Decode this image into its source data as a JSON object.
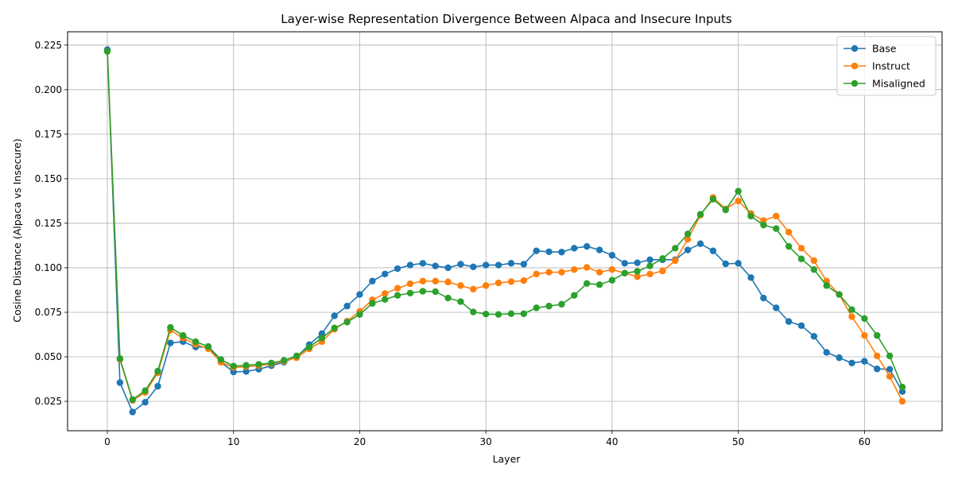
{
  "chart_data": {
    "type": "line",
    "title": "Layer-wise Representation Divergence Between Alpaca and Insecure Inputs",
    "xlabel": "Layer",
    "ylabel": "Cosine Distance (Alpaca vs Insecure)",
    "xlim": [
      -3.15,
      66.15
    ],
    "ylim": [
      0.0085,
      0.2325
    ],
    "xticks": [
      0,
      10,
      20,
      30,
      40,
      50,
      60
    ],
    "yticks": [
      0.025,
      0.05,
      0.075,
      0.1,
      0.125,
      0.15,
      0.175,
      0.2,
      0.225
    ],
    "ytick_labels": [
      "0.025",
      "0.050",
      "0.075",
      "0.100",
      "0.125",
      "0.150",
      "0.175",
      "0.200",
      "0.225"
    ],
    "grid": true,
    "legend_position": "top-right",
    "x": [
      0,
      1,
      2,
      3,
      4,
      5,
      6,
      7,
      8,
      9,
      10,
      11,
      12,
      13,
      14,
      15,
      16,
      17,
      18,
      19,
      20,
      21,
      22,
      23,
      24,
      25,
      26,
      27,
      28,
      29,
      30,
      31,
      32,
      33,
      34,
      35,
      36,
      37,
      38,
      39,
      40,
      41,
      42,
      43,
      44,
      45,
      46,
      47,
      48,
      49,
      50,
      51,
      52,
      53,
      54,
      55,
      56,
      57,
      58,
      59,
      60,
      61,
      62,
      63
    ],
    "series": [
      {
        "name": "Base",
        "color": "#1f77b4",
        "values": [
          0.2225,
          0.0355,
          0.019,
          0.0245,
          0.0335,
          0.0578,
          0.0585,
          0.0555,
          0.0555,
          0.047,
          0.0415,
          0.0418,
          0.043,
          0.045,
          0.047,
          0.05,
          0.0568,
          0.063,
          0.073,
          0.0785,
          0.085,
          0.0925,
          0.0965,
          0.0995,
          0.1015,
          0.1025,
          0.101,
          0.1,
          0.102,
          0.1005,
          0.1015,
          0.1015,
          0.1025,
          0.102,
          0.1095,
          0.109,
          0.1088,
          0.111,
          0.112,
          0.11,
          0.107,
          0.1025,
          0.1028,
          0.1045,
          0.1045,
          0.1045,
          0.11,
          0.1135,
          0.1095,
          0.1022,
          0.1025,
          0.0945,
          0.083,
          0.0775,
          0.0698,
          0.0675,
          0.0615,
          0.0525,
          0.0495,
          0.0465,
          0.0475,
          0.0432,
          0.043,
          0.0305
        ]
      },
      {
        "name": "Instruct",
        "color": "#ff7f0e",
        "values": [
          0.2215,
          0.0485,
          0.0255,
          0.03,
          0.041,
          0.065,
          0.0605,
          0.057,
          0.0545,
          0.047,
          0.044,
          0.0445,
          0.045,
          0.046,
          0.0475,
          0.0495,
          0.0545,
          0.0585,
          0.0655,
          0.07,
          0.0755,
          0.082,
          0.0855,
          0.0885,
          0.091,
          0.0925,
          0.0925,
          0.092,
          0.09,
          0.088,
          0.09,
          0.0915,
          0.0922,
          0.0928,
          0.0965,
          0.0975,
          0.0975,
          0.099,
          0.1002,
          0.0975,
          0.099,
          0.097,
          0.095,
          0.0965,
          0.0982,
          0.104,
          0.116,
          0.1295,
          0.1395,
          0.133,
          0.1375,
          0.1305,
          0.1265,
          0.129,
          0.12,
          0.111,
          0.104,
          0.0925,
          0.085,
          0.0725,
          0.062,
          0.0505,
          0.039,
          0.025
        ]
      },
      {
        "name": "Misaligned",
        "color": "#2ca02c",
        "values": [
          0.2215,
          0.049,
          0.026,
          0.031,
          0.042,
          0.0665,
          0.062,
          0.0585,
          0.0558,
          0.0485,
          0.0448,
          0.0452,
          0.0458,
          0.0465,
          0.048,
          0.0505,
          0.0555,
          0.0605,
          0.0662,
          0.0695,
          0.0738,
          0.08,
          0.0822,
          0.0845,
          0.0858,
          0.0868,
          0.0866,
          0.083,
          0.081,
          0.0752,
          0.074,
          0.0738,
          0.0742,
          0.0742,
          0.0775,
          0.0785,
          0.0795,
          0.0845,
          0.0912,
          0.0905,
          0.093,
          0.097,
          0.098,
          0.101,
          0.1052,
          0.111,
          0.119,
          0.13,
          0.1385,
          0.1325,
          0.143,
          0.129,
          0.124,
          0.122,
          0.112,
          0.105,
          0.099,
          0.09,
          0.085,
          0.0765,
          0.0715,
          0.062,
          0.0505,
          0.033
        ]
      }
    ]
  }
}
